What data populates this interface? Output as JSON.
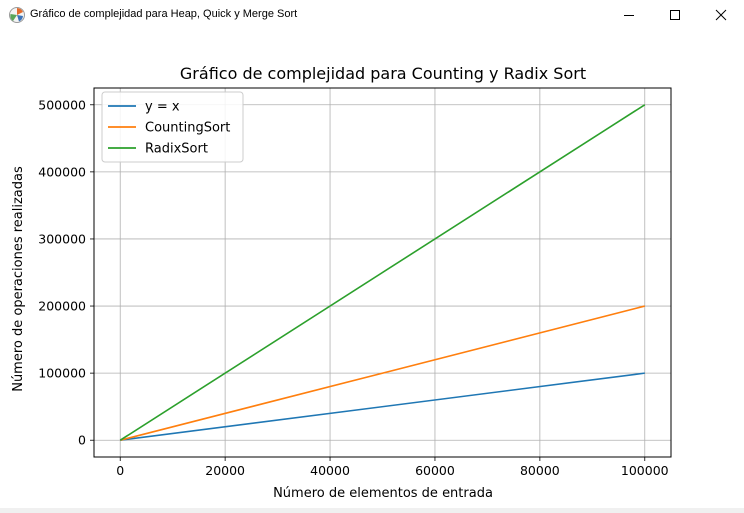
{
  "window": {
    "title": "Gráfico de complejidad para Heap, Quick y Merge Sort",
    "icon": "matplotlib-icon",
    "controls": [
      "minimize-icon",
      "maximize-icon",
      "close-icon"
    ]
  },
  "chart_data": {
    "type": "line",
    "title": "Gráfico de complejidad para Counting y Radix Sort",
    "xlabel": "Número de elementos de entrada",
    "ylabel": "Número de operaciones realizadas",
    "xlim": [
      -5000,
      105000
    ],
    "ylim": [
      -25000,
      525000
    ],
    "xticks": [
      0,
      20000,
      40000,
      60000,
      80000,
      100000
    ],
    "xtick_labels": [
      "0",
      "20000",
      "40000",
      "60000",
      "80000",
      "100000"
    ],
    "yticks": [
      0,
      100000,
      200000,
      300000,
      400000,
      500000
    ],
    "ytick_labels": [
      "0",
      "100000",
      "200000",
      "300000",
      "400000",
      "500000"
    ],
    "grid": true,
    "legend_position": "top-left",
    "series": [
      {
        "name": "y = x",
        "color": "#1f77b4",
        "x": [
          0,
          100000
        ],
        "y": [
          0,
          100000
        ]
      },
      {
        "name": "CountingSort",
        "color": "#ff7f0e",
        "x": [
          0,
          100000
        ],
        "y": [
          0,
          200000
        ]
      },
      {
        "name": "RadixSort",
        "color": "#2ca02c",
        "x": [
          0,
          100000
        ],
        "y": [
          0,
          500000
        ]
      }
    ]
  }
}
